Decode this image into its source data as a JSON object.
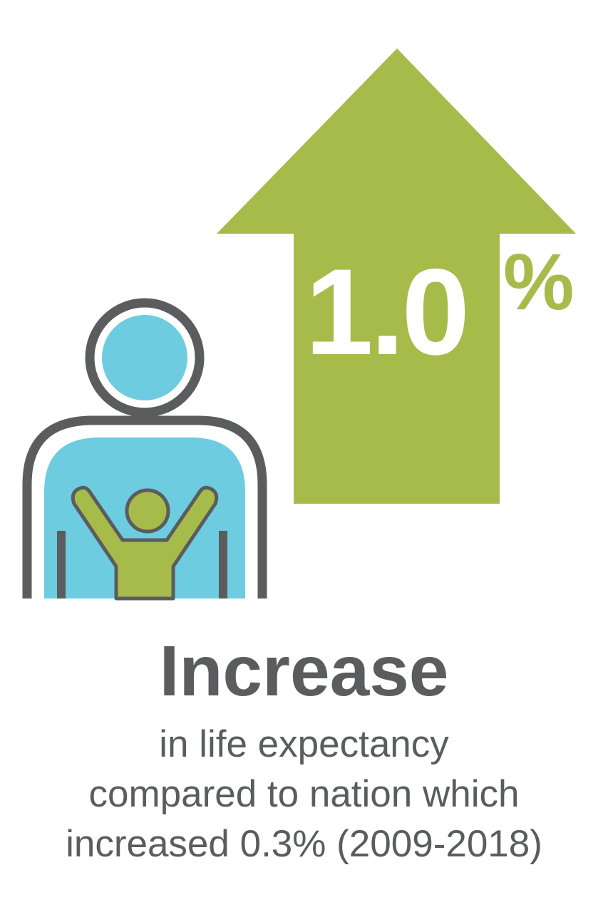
{
  "stat": {
    "value": "1.0",
    "unit": "%"
  },
  "headline": "Increase",
  "caption_lines": [
    "in life expectancy",
    "compared to nation which",
    "increased 0.3% (2009-2018)"
  ],
  "colors": {
    "green": "#a7bb4b",
    "blue": "#6dccdf",
    "gray": "#5a5c5d",
    "white": "#ffffff"
  },
  "icons": {
    "arrow": "up-arrow-icon",
    "person": "person-icon",
    "child": "child-arms-raised-icon"
  }
}
